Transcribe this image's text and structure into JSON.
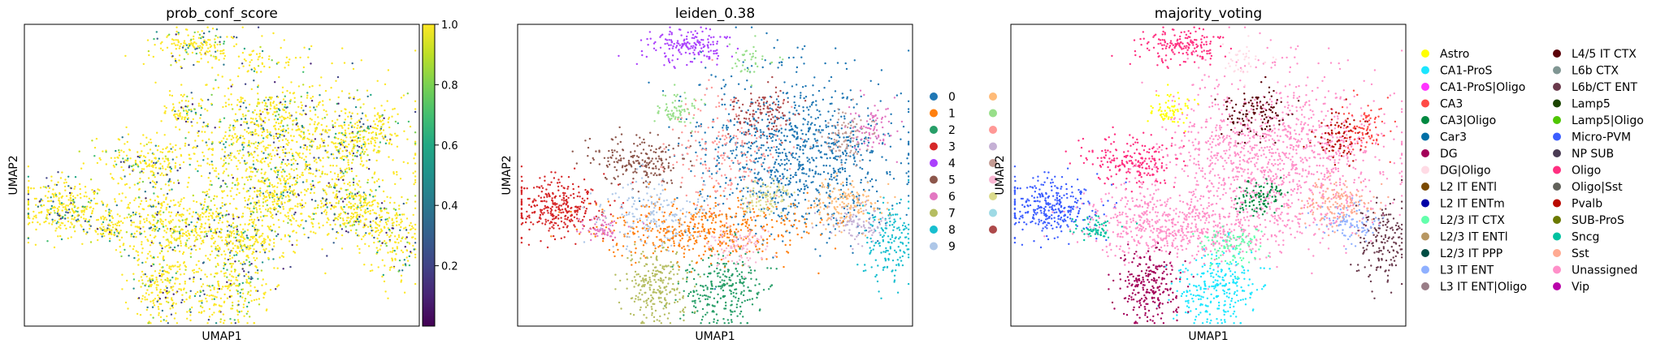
{
  "chart_data": [
    {
      "type": "scatter",
      "title": "prob_conf_score",
      "xlabel": "UMAP1",
      "ylabel": "UMAP2",
      "colorbar": {
        "colormap": "viridis",
        "range": [
          0.0,
          1.0
        ],
        "ticks": [
          0.2,
          0.4,
          0.6,
          0.8,
          1.0
        ],
        "tick_labels": [
          "0.2",
          "0.4",
          "0.6",
          "0.8",
          "1.0"
        ]
      }
    },
    {
      "type": "scatter",
      "title": "leiden_0.38",
      "xlabel": "UMAP1",
      "ylabel": "UMAP2",
      "legend_placement": "right",
      "legend": [
        {
          "label": "0",
          "color": "#1f77b4"
        },
        {
          "label": "1",
          "color": "#ff7f0e"
        },
        {
          "label": "2",
          "color": "#279e68"
        },
        {
          "label": "3",
          "color": "#d62728"
        },
        {
          "label": "4",
          "color": "#aa40fc"
        },
        {
          "label": "5",
          "color": "#8c564b"
        },
        {
          "label": "6",
          "color": "#e377c2"
        },
        {
          "label": "7",
          "color": "#b5bd61"
        },
        {
          "label": "8",
          "color": "#17becf"
        },
        {
          "label": "9",
          "color": "#aec7e8"
        },
        {
          "label": "",
          "color": "#ffbb78"
        },
        {
          "label": "",
          "color": "#98df8a"
        },
        {
          "label": "",
          "color": "#ff9896"
        },
        {
          "label": "",
          "color": "#c5b0d5"
        },
        {
          "label": "",
          "color": "#c49c94"
        },
        {
          "label": "",
          "color": "#f7b6d2"
        },
        {
          "label": "",
          "color": "#dbdb8d"
        },
        {
          "label": "",
          "color": "#9edae5"
        },
        {
          "label": "",
          "color": "#ad494a"
        }
      ]
    },
    {
      "type": "scatter",
      "title": "majority_voting",
      "xlabel": "UMAP1",
      "ylabel": "UMAP2",
      "legend_placement": "right",
      "legend": [
        {
          "label": "Astro",
          "color": "#ffff00"
        },
        {
          "label": "CA1-ProS",
          "color": "#1ce6ff"
        },
        {
          "label": "CA1-ProS|Oligo",
          "color": "#ff34ff"
        },
        {
          "label": "CA3",
          "color": "#ff4a46"
        },
        {
          "label": "CA3|Oligo",
          "color": "#008941"
        },
        {
          "label": "Car3",
          "color": "#006fa6"
        },
        {
          "label": "DG",
          "color": "#a30059"
        },
        {
          "label": "DG|Oligo",
          "color": "#ffdbe5"
        },
        {
          "label": "L2 IT ENTl",
          "color": "#7a4900"
        },
        {
          "label": "L2 IT ENTm",
          "color": "#0000a6"
        },
        {
          "label": "L2/3 IT CTX",
          "color": "#63ffac"
        },
        {
          "label": "L2/3 IT ENTl",
          "color": "#b79762"
        },
        {
          "label": "L2/3 IT PPP",
          "color": "#004d43"
        },
        {
          "label": "L3 IT ENT",
          "color": "#8fb0ff"
        },
        {
          "label": "L3 IT ENT|Oligo",
          "color": "#997d87"
        },
        {
          "label": "L4/5 IT CTX",
          "color": "#5a0007"
        },
        {
          "label": "L6b CTX",
          "color": "#809693"
        },
        {
          "label": "L6b/CT ENT",
          "color": "#6a3a4c"
        },
        {
          "label": "Lamp5",
          "color": "#1b4400"
        },
        {
          "label": "Lamp5|Oligo",
          "color": "#4fc601"
        },
        {
          "label": "Micro-PVM",
          "color": "#3b5dff"
        },
        {
          "label": "NP SUB",
          "color": "#4a3b53"
        },
        {
          "label": "Oligo",
          "color": "#ff2f80"
        },
        {
          "label": "Oligo|Sst",
          "color": "#61615a"
        },
        {
          "label": "Pvalb",
          "color": "#ba0900"
        },
        {
          "label": "SUB-ProS",
          "color": "#6b7900"
        },
        {
          "label": "Sncg",
          "color": "#00c2a0"
        },
        {
          "label": "Sst",
          "color": "#ffaa92"
        },
        {
          "label": "Unassigned",
          "color": "#ff90c9"
        },
        {
          "label": "Vip",
          "color": "#b903aa"
        }
      ]
    }
  ]
}
